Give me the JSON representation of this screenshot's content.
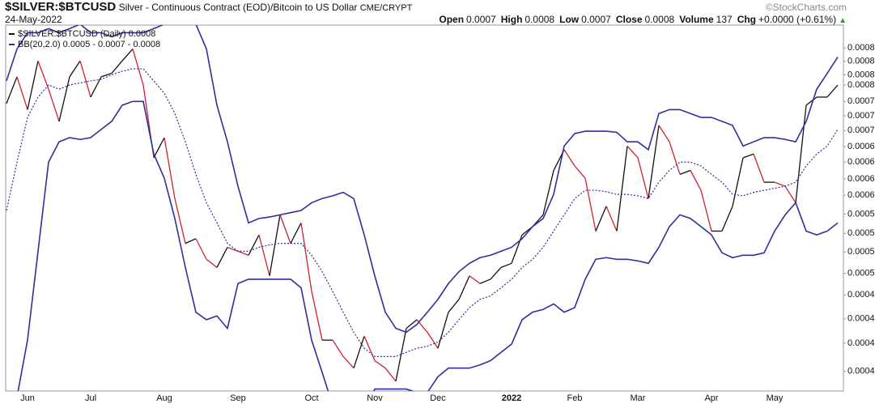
{
  "header": {
    "symbol": "$SILVER:$BTCUSD",
    "description": "Silver - Continuous Contract (EOD)/Bitcoin to US Dollar",
    "exchange": "CME/CRYPT",
    "watermark": "©StockCharts.com",
    "date": "24-May-2022",
    "quote": [
      {
        "label": "Open",
        "value": 0.0007
      },
      {
        "label": "High",
        "value": 0.0008
      },
      {
        "label": "Low",
        "value": 0.0007
      },
      {
        "label": "Close",
        "value": 0.0008
      },
      {
        "label": "Volume",
        "value": 137
      },
      {
        "label": "Chg",
        "value": "+0.0000 (+0.61%)"
      }
    ]
  },
  "chart_data": {
    "type": "line",
    "log_scale": true,
    "categories": [
      null,
      null,
      "Jun",
      null,
      null,
      null,
      null,
      null,
      "Jul",
      null,
      null,
      null,
      null,
      null,
      null,
      "Aug",
      null,
      null,
      null,
      null,
      null,
      null,
      "Sep",
      null,
      null,
      null,
      null,
      null,
      null,
      "Oct",
      null,
      null,
      null,
      null,
      null,
      "Nov",
      null,
      null,
      null,
      null,
      null,
      "Dec",
      null,
      null,
      null,
      null,
      null,
      null,
      "2022",
      null,
      null,
      null,
      null,
      null,
      "Feb",
      null,
      null,
      null,
      null,
      null,
      "Mar",
      null,
      null,
      null,
      null,
      null,
      null,
      "Apr",
      null,
      null,
      null,
      null,
      null,
      "May",
      null,
      null,
      null,
      null,
      null,
      null
    ],
    "series": [
      {
        "name": "$SILVER:$BTCUSD (Daily) 0.0008",
        "color": "#111111",
        "down_color": "#d0202e",
        "values": [
          0.000715,
          0.000766,
          0.000704,
          0.000798,
          0.000742,
          0.000683,
          0.000766,
          0.000798,
          0.000727,
          0.000766,
          0.000773,
          0.000798,
          0.000823,
          0.00075,
          0.000622,
          0.000655,
          0.00056,
          0.000499,
          0.000505,
          0.000479,
          0.000469,
          0.000494,
          0.000489,
          0.000484,
          0.00051,
          0.000459,
          0.000537,
          0.000499,
          0.000526,
          0.000441,
          0.000389,
          0.000389,
          0.000373,
          0.000362,
          0.000393,
          0.000369,
          0.000362,
          0.00035,
          0.000401,
          0.00041,
          0.000397,
          0.000381,
          0.000418,
          0.000432,
          0.000459,
          0.00045,
          0.000455,
          0.000469,
          0.000474,
          0.00051,
          0.000521,
          0.000537,
          0.000602,
          0.000635,
          0.000609,
          0.00059,
          0.000515,
          0.000549,
          0.000515,
          0.000641,
          0.000622,
          0.00056,
          0.000676,
          0.000648,
          0.000596,
          0.000602,
          0.000572,
          0.000515,
          0.000515,
          0.000549,
          0.000622,
          0.000628,
          0.000584,
          0.000584,
          0.000578,
          0.000554,
          0.000712,
          0.000727,
          0.000727,
          0.00075
        ]
      },
      {
        "name": "BB(20,2.0) 0.0005 - 0.0007 - 0.0008",
        "color": "#2e2e9e",
        "upper": [
          0.000758,
          0.000823,
          0.000858,
          0.000858,
          0.000867,
          0.000858,
          0.000867,
          0.000877,
          0.000858,
          0.000858,
          0.000849,
          0.000858,
          0.000858,
          0.000858,
          0.000867,
          0.000877,
          0.000895,
          0.000895,
          0.000877,
          0.000823,
          0.000712,
          0.000648,
          0.000578,
          0.000526,
          0.000532,
          0.000534,
          0.000537,
          0.00054,
          0.000543,
          0.000554,
          0.00056,
          0.000564,
          0.000569,
          0.00056,
          0.00051,
          0.000459,
          0.000418,
          0.000401,
          0.000397,
          0.000405,
          0.000418,
          0.000432,
          0.00045,
          0.000464,
          0.000474,
          0.000481,
          0.000484,
          0.000489,
          0.000494,
          0.000505,
          0.000521,
          0.000532,
          0.000566,
          0.000641,
          0.000662,
          0.000666,
          0.000666,
          0.000666,
          0.000664,
          0.000648,
          0.000648,
          0.000635,
          0.000697,
          0.000704,
          0.000704,
          0.000697,
          0.00069,
          0.00069,
          0.000683,
          0.000676,
          0.000641,
          0.000648,
          0.000655,
          0.000655,
          0.000652,
          0.000648,
          0.000683,
          0.000742,
          0.000773,
          0.000806
        ],
        "middle": [
          0.000543,
          0.000615,
          0.00069,
          0.000727,
          0.00075,
          0.000742,
          0.00075,
          0.000754,
          0.000758,
          0.000761,
          0.00077,
          0.000777,
          0.000782,
          0.000782,
          0.000758,
          0.000734,
          0.000697,
          0.000648,
          0.000596,
          0.000554,
          0.000526,
          0.000499,
          0.000489,
          0.000489,
          0.000494,
          0.000497,
          0.000499,
          0.000499,
          0.000499,
          0.000484,
          0.000464,
          0.000441,
          0.000418,
          0.000397,
          0.000381,
          0.000373,
          0.000373,
          0.000373,
          0.000377,
          0.000381,
          0.000383,
          0.000387,
          0.000397,
          0.00041,
          0.000423,
          0.000432,
          0.000436,
          0.000445,
          0.000455,
          0.000469,
          0.000479,
          0.000494,
          0.000515,
          0.000537,
          0.00056,
          0.000572,
          0.000572,
          0.00057,
          0.000566,
          0.000566,
          0.000564,
          0.00056,
          0.000584,
          0.000602,
          0.000615,
          0.000615,
          0.000609,
          0.000596,
          0.000584,
          0.000566,
          0.000564,
          0.000569,
          0.000572,
          0.000575,
          0.000578,
          0.000584,
          0.000609,
          0.000628,
          0.000641,
          0.000669
        ],
        "lower": [
          0.000329,
          0.000336,
          0.000389,
          0.000489,
          0.000615,
          0.000648,
          0.000655,
          0.000652,
          0.000655,
          0.000669,
          0.000683,
          0.000712,
          0.000719,
          0.000719,
          0.000628,
          0.00059,
          0.000532,
          0.000469,
          0.000418,
          0.00041,
          0.000414,
          0.000401,
          0.00045,
          0.000455,
          0.000455,
          0.000455,
          0.000455,
          0.000455,
          0.000445,
          0.000389,
          0.000358,
          0.000329,
          0.000322,
          0.000322,
          0.000322,
          0.000343,
          0.000343,
          0.000343,
          0.000343,
          0.00034,
          0.00034,
          0.000354,
          0.000362,
          0.000362,
          0.000362,
          0.000365,
          0.000369,
          0.000377,
          0.000385,
          0.00041,
          0.000418,
          0.000421,
          0.000427,
          0.000418,
          0.000423,
          0.000455,
          0.000479,
          0.000481,
          0.000479,
          0.000479,
          0.000477,
          0.000474,
          0.000494,
          0.000521,
          0.000537,
          0.000532,
          0.000521,
          0.00051,
          0.000487,
          0.000481,
          0.000484,
          0.000484,
          0.000487,
          0.000515,
          0.000537,
          0.000554,
          0.000515,
          0.00051,
          0.000515,
          0.000526
        ]
      }
    ],
    "ylim": [
      0.000342,
      0.000875
    ],
    "yticks": [
      {
        "value": 0.000825,
        "label": "0.0008"
      },
      {
        "value": 0.000797,
        "label": "0.0008"
      },
      {
        "value": 0.00077,
        "label": "0.0008"
      },
      {
        "value": 0.00075,
        "label": "0.0008"
      },
      {
        "value": 0.000719,
        "label": "0.0007"
      },
      {
        "value": 0.000693,
        "label": "0.0007"
      },
      {
        "value": 0.000667,
        "label": "0.0007"
      },
      {
        "value": 0.00064,
        "label": "0.0006"
      },
      {
        "value": 0.000615,
        "label": "0.0006"
      },
      {
        "value": 0.000589,
        "label": "0.0006"
      },
      {
        "value": 0.000565,
        "label": "0.0006"
      },
      {
        "value": 0.000538,
        "label": "0.0005"
      },
      {
        "value": 0.000512,
        "label": "0.0005"
      },
      {
        "value": 0.000488,
        "label": "0.0005"
      },
      {
        "value": 0.000462,
        "label": "0.0005"
      },
      {
        "value": 0.000437,
        "label": "0.0004"
      },
      {
        "value": 0.000411,
        "label": "0.0004"
      },
      {
        "value": 0.000386,
        "label": "0.0004"
      },
      {
        "value": 0.000359,
        "label": "0.0004"
      }
    ]
  }
}
